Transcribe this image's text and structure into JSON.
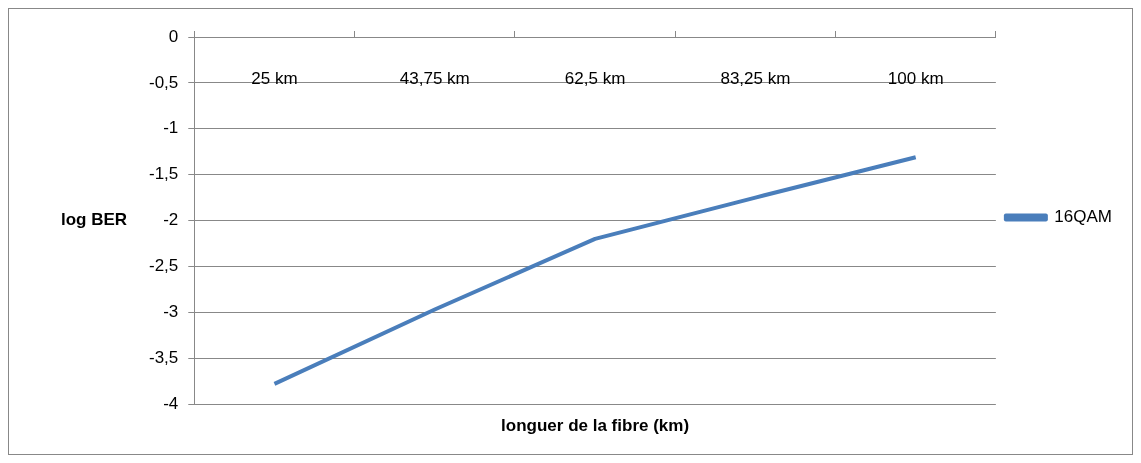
{
  "chart_data": {
    "type": "line",
    "xlabel": "longuer de la fibre (km)",
    "ylabel": "log BER",
    "categories": [
      "25 km",
      "43,75 km",
      "62,5 km",
      "83,25 km",
      "100 km"
    ],
    "series": [
      {
        "name": "16QAM",
        "color": "#4a7ebb",
        "values": [
          -3.78,
          -2.97,
          -2.2,
          -1.75,
          -1.31
        ]
      }
    ],
    "ylim": [
      -4,
      0
    ],
    "yticks": [
      {
        "value": -4,
        "label": "-4"
      },
      {
        "value": -3.5,
        "label": "-3,5"
      },
      {
        "value": -3,
        "label": "-3"
      },
      {
        "value": -2.5,
        "label": "-2,5"
      },
      {
        "value": -2,
        "label": "-2"
      },
      {
        "value": -1.5,
        "label": "-1,5"
      },
      {
        "value": -1,
        "label": "-1"
      },
      {
        "value": -0.5,
        "label": "-0,5"
      },
      {
        "value": 0,
        "label": "0"
      }
    ],
    "grid": "y",
    "legend": "right",
    "marker": "none",
    "line_style": "solid"
  }
}
